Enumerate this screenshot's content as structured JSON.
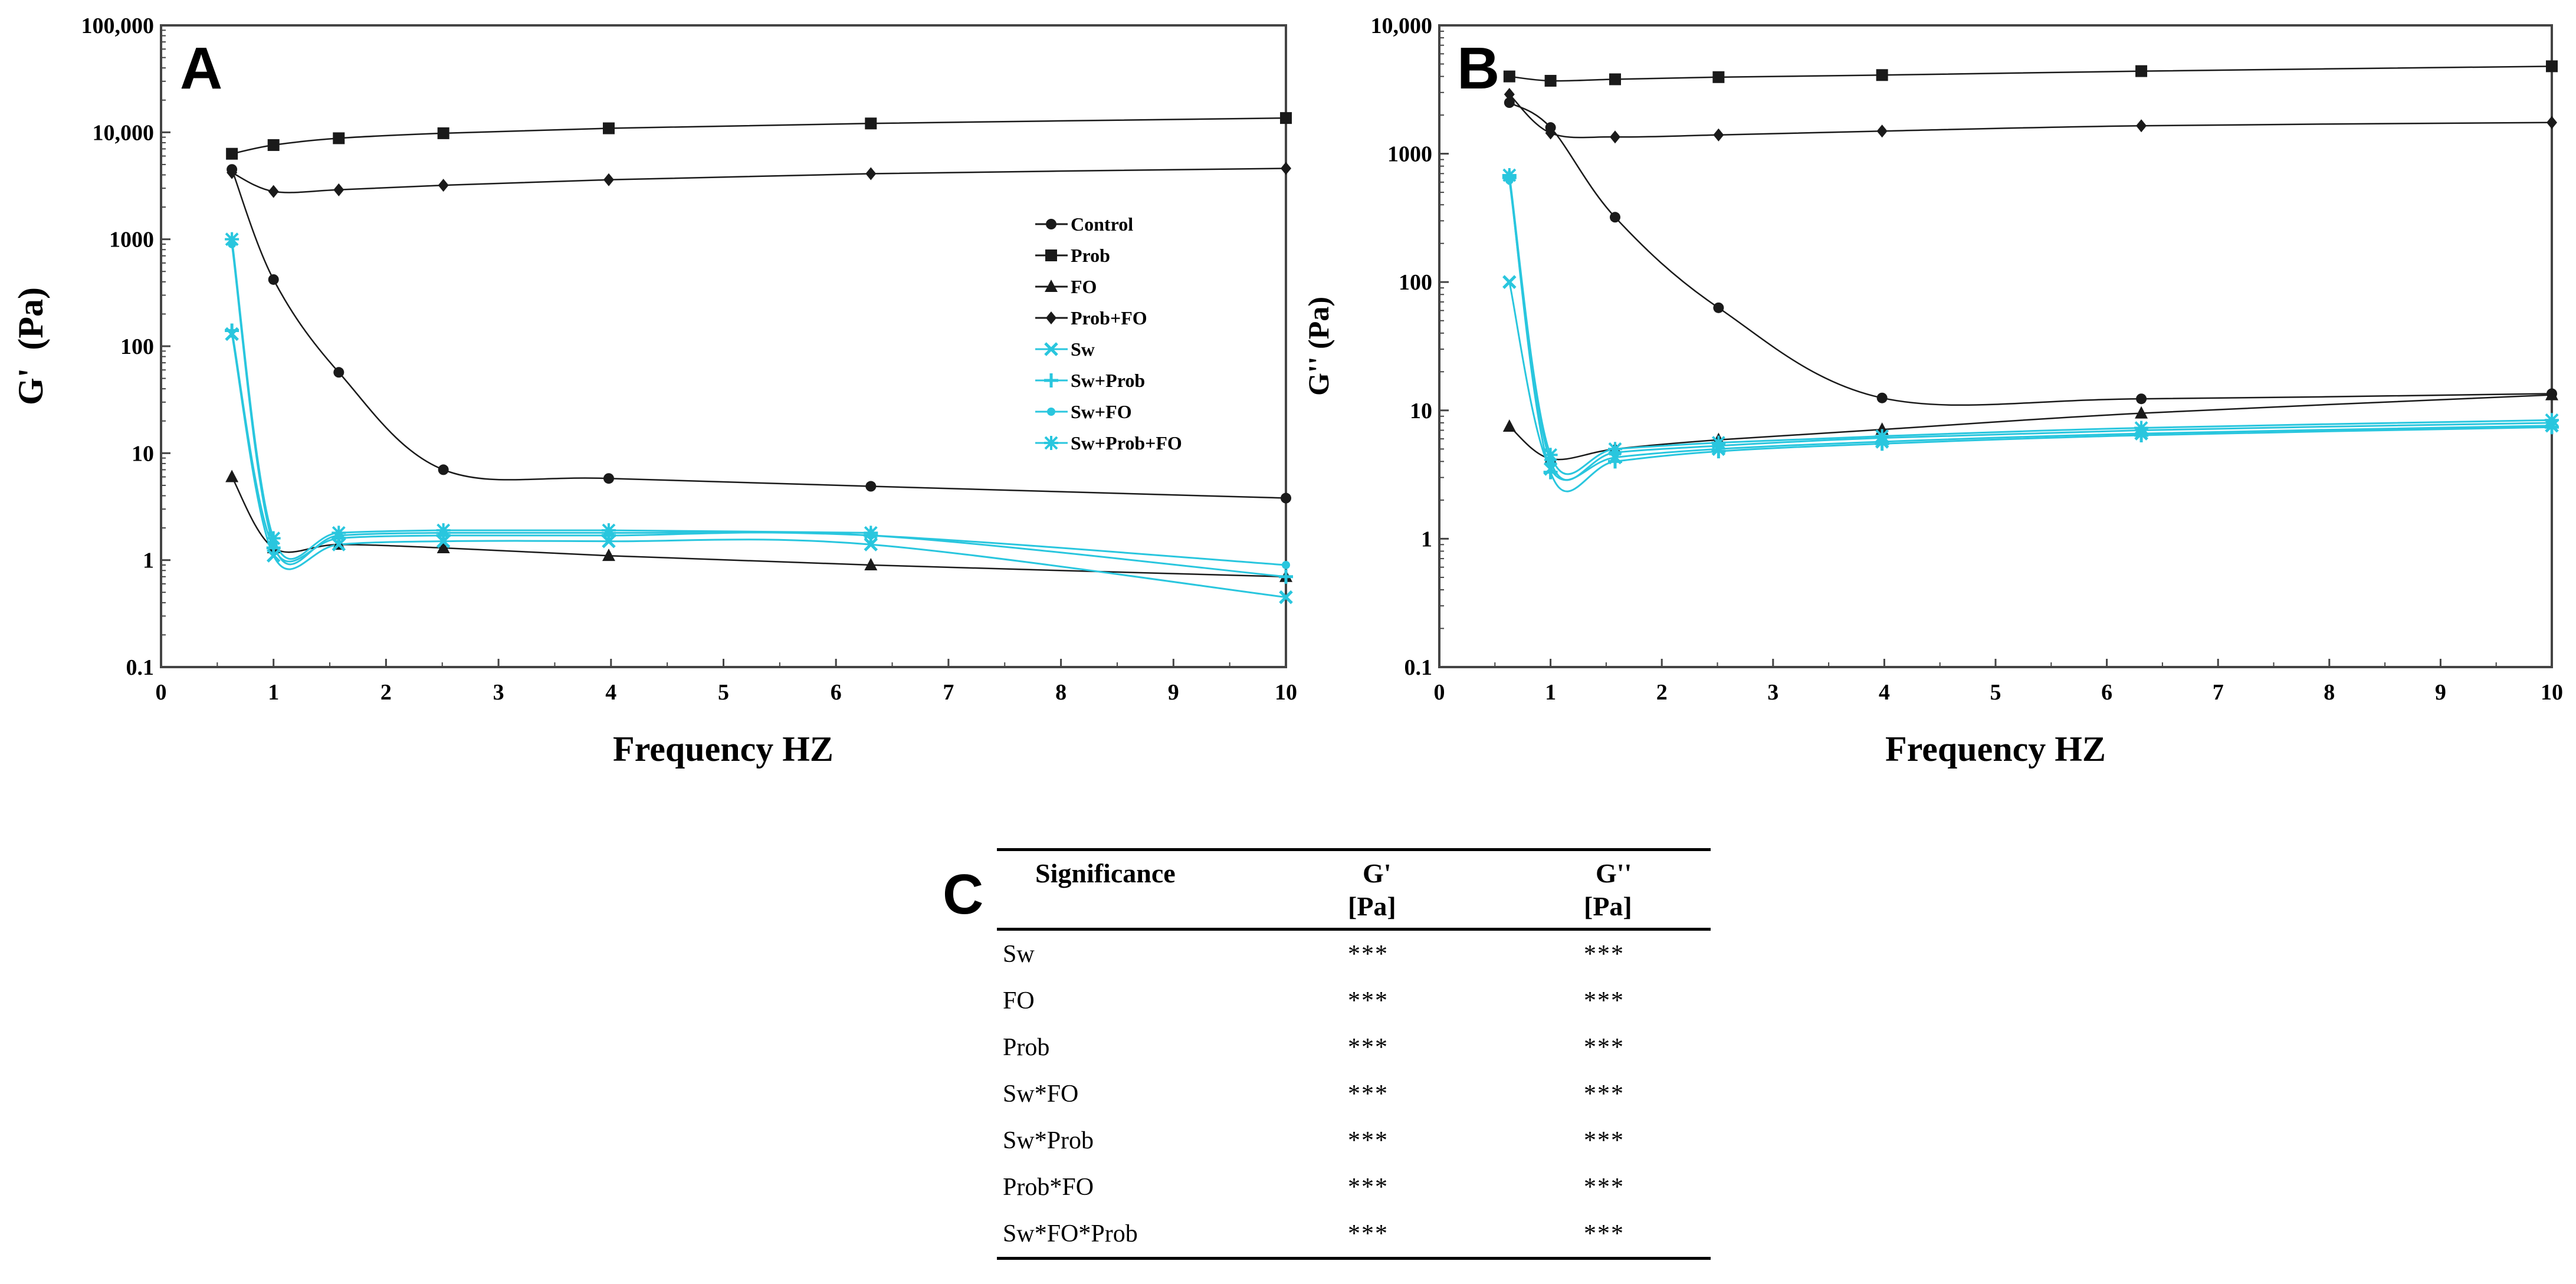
{
  "colors": {
    "black": "#1a1a1a",
    "cyan": "#29c6de"
  },
  "chart_data": [
    {
      "panel": "A",
      "type": "line",
      "xlabel": "Frequency HZ",
      "ylabel": "G'  (Pa)",
      "yscale": "log",
      "xlim": [
        0,
        10
      ],
      "ylim": [
        0.1,
        100000
      ],
      "x_ticks": [
        "0",
        "1",
        "2",
        "3",
        "4",
        "5",
        "6",
        "7",
        "8",
        "9",
        "10"
      ],
      "y_ticks": [
        "0.1",
        "1",
        "10",
        "100",
        "1000",
        "10,000",
        "100,000"
      ],
      "legend_position": "right-middle",
      "legend": [
        "Control",
        "Prob",
        "FO",
        "Prob+FO",
        "Sw",
        "Sw+Prob",
        "Sw+FO",
        "Sw+Prob+FO"
      ],
      "series": [
        {
          "name": "Control",
          "color": "#1a1a1a",
          "marker": "circle",
          "x": [
            0.63,
            1.0,
            1.58,
            2.51,
            3.98,
            6.31,
            10.0
          ],
          "values": [
            4500,
            420,
            57,
            7,
            5.8,
            4.9,
            3.8
          ]
        },
        {
          "name": "Prob",
          "color": "#1a1a1a",
          "marker": "square",
          "x": [
            0.63,
            1.0,
            1.58,
            2.51,
            3.98,
            6.31,
            10.0
          ],
          "values": [
            6300,
            7600,
            8800,
            9800,
            10900,
            12100,
            13600
          ]
        },
        {
          "name": "FO",
          "color": "#1a1a1a",
          "marker": "triangle",
          "x": [
            0.63,
            1.0,
            1.58,
            2.51,
            3.98,
            6.31,
            10.0
          ],
          "values": [
            6,
            1.3,
            1.4,
            1.3,
            1.1,
            0.9,
            0.7
          ]
        },
        {
          "name": "Prob+FO",
          "color": "#1a1a1a",
          "marker": "diamond",
          "x": [
            0.63,
            1.0,
            1.58,
            2.51,
            3.98,
            6.31,
            10.0
          ],
          "values": [
            4200,
            2800,
            2900,
            3200,
            3600,
            4100,
            4600
          ]
        },
        {
          "name": "Sw",
          "color": "#29c6de",
          "marker": "x",
          "x": [
            0.63,
            1.0,
            1.58,
            2.51,
            3.98,
            6.31,
            10.0
          ],
          "values": [
            130,
            1.1,
            1.4,
            1.5,
            1.5,
            1.4,
            0.45
          ]
        },
        {
          "name": "Sw+Prob",
          "color": "#29c6de",
          "marker": "plus",
          "x": [
            0.63,
            1.0,
            1.58,
            2.51,
            3.98,
            6.31,
            10.0
          ],
          "values": [
            140,
            1.3,
            1.6,
            1.7,
            1.7,
            1.7,
            0.7
          ]
        },
        {
          "name": "Sw+FO",
          "color": "#29c6de",
          "marker": "dot",
          "x": [
            0.63,
            1.0,
            1.58,
            2.51,
            3.98,
            6.31,
            10.0
          ],
          "values": [
            900,
            1.4,
            1.7,
            1.8,
            1.8,
            1.7,
            0.9
          ]
        },
        {
          "name": "Sw+Prob+FO",
          "color": "#29c6de",
          "marker": "star",
          "x": [
            0.63,
            1.0,
            1.58,
            2.51,
            3.98,
            6.31
          ],
          "values": [
            1000,
            1.6,
            1.8,
            1.9,
            1.9,
            1.8
          ]
        }
      ]
    },
    {
      "panel": "B",
      "type": "line",
      "xlabel": "Frequency HZ",
      "ylabel": "G'' (Pa)",
      "yscale": "log",
      "xlim": [
        0,
        10
      ],
      "ylim": [
        0.1,
        10000
      ],
      "x_ticks": [
        "0",
        "1",
        "2",
        "3",
        "4",
        "5",
        "6",
        "7",
        "8",
        "9",
        "10"
      ],
      "y_ticks": [
        "0.1",
        "1",
        "10",
        "100",
        "1000",
        "10,000"
      ],
      "series": [
        {
          "name": "Control",
          "color": "#1a1a1a",
          "marker": "circle",
          "x": [
            0.63,
            1.0,
            1.58,
            2.51,
            3.98,
            6.31,
            10.0
          ],
          "values": [
            2500,
            1600,
            320,
            63,
            12.5,
            12.3,
            13.5
          ]
        },
        {
          "name": "Prob",
          "color": "#1a1a1a",
          "marker": "square",
          "x": [
            0.63,
            1.0,
            1.58,
            2.51,
            3.98,
            6.31,
            10.0
          ],
          "values": [
            4000,
            3700,
            3800,
            3950,
            4100,
            4400,
            4800
          ]
        },
        {
          "name": "FO",
          "color": "#1a1a1a",
          "marker": "triangle",
          "x": [
            0.63,
            1.0,
            1.58,
            2.51,
            3.98,
            6.31,
            10.0
          ],
          "values": [
            7.5,
            4.2,
            5.0,
            5.9,
            7.1,
            9.5,
            13.2
          ]
        },
        {
          "name": "Prob+FO",
          "color": "#1a1a1a",
          "marker": "diamond",
          "x": [
            0.63,
            1.0,
            1.58,
            2.51,
            3.98,
            6.31,
            10.0
          ],
          "values": [
            2900,
            1450,
            1350,
            1400,
            1500,
            1650,
            1750
          ]
        },
        {
          "name": "Sw",
          "color": "#29c6de",
          "marker": "x",
          "x": [
            0.63,
            1.0,
            1.58,
            2.51,
            3.98,
            6.31,
            10.0
          ],
          "values": [
            100,
            3.5,
            4.3,
            5.0,
            5.7,
            6.6,
            7.6
          ]
        },
        {
          "name": "Sw+Prob",
          "color": "#29c6de",
          "marker": "plus",
          "x": [
            0.63,
            1.0,
            1.58,
            2.51,
            3.98,
            6.31,
            10.0
          ],
          "values": [
            650,
            3.3,
            4.0,
            4.8,
            5.5,
            6.4,
            7.4
          ]
        },
        {
          "name": "Sw+FO",
          "color": "#29c6de",
          "marker": "dot",
          "x": [
            0.63,
            1.0,
            1.58,
            2.51,
            3.98,
            6.31,
            10.0
          ],
          "values": [
            620,
            4.0,
            4.7,
            5.3,
            6.1,
            7.0,
            8.0
          ]
        },
        {
          "name": "Sw+Prob+FO",
          "color": "#29c6de",
          "marker": "star",
          "x": [
            0.63,
            1.0,
            1.58,
            2.51,
            3.98,
            6.31,
            10.0
          ],
          "values": [
            680,
            4.5,
            5.0,
            5.6,
            6.3,
            7.3,
            8.4
          ]
        }
      ]
    }
  ],
  "table": {
    "label": "C",
    "header": {
      "significance": "Significance",
      "g1": "G'",
      "g1_unit": "[Pa]",
      "g2": "G''",
      "g2_unit": "[Pa]"
    },
    "rows": [
      {
        "term": "Sw",
        "g1": "***",
        "g2": "***"
      },
      {
        "term": "FO",
        "g1": "***",
        "g2": "***"
      },
      {
        "term": "Prob",
        "g1": "***",
        "g2": "***"
      },
      {
        "term": "Sw*FO",
        "g1": "***",
        "g2": "***"
      },
      {
        "term": "Sw*Prob",
        "g1": "***",
        "g2": "***"
      },
      {
        "term": "Prob*FO",
        "g1": "***",
        "g2": "***"
      },
      {
        "term": "Sw*FO*Prob",
        "g1": "***",
        "g2": "***"
      }
    ]
  }
}
